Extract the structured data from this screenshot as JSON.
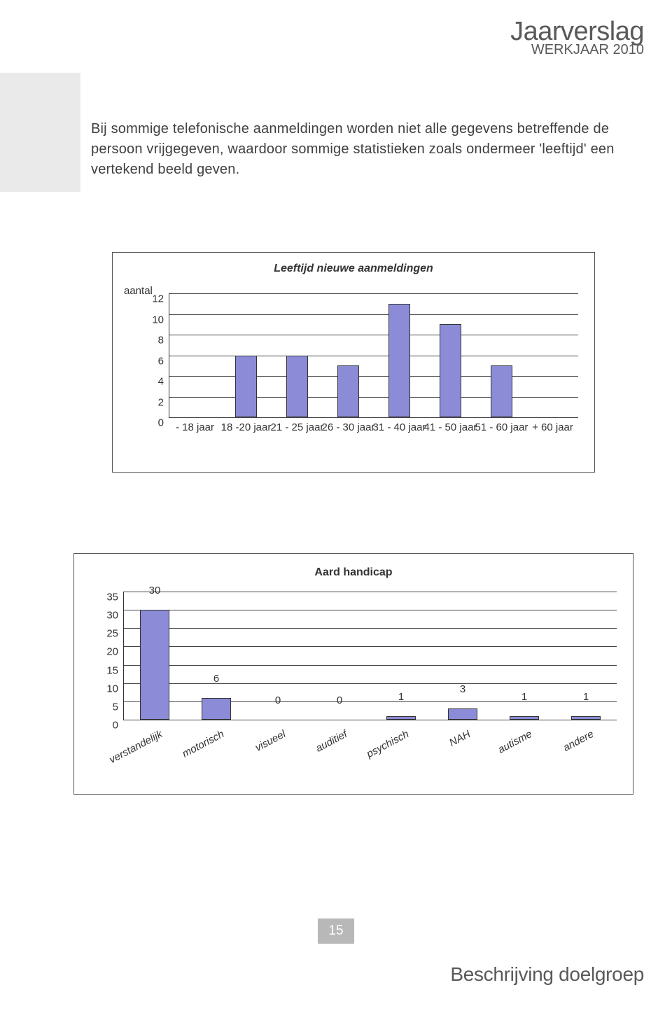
{
  "header": {
    "title": "Jaarverslag",
    "subtitle": "WERKJAAR 2010"
  },
  "body_paragraph": "Bij sommige telefonische aanmeldingen worden niet alle gegevens betreffende de persoon vrijgegeven, waardoor sommige statistieken zoals ondermeer 'leeftijd' een vertekend beeld geven.",
  "chart1": {
    "type": "bar",
    "title": "Leeftijd nieuwe aanmeldingen",
    "title_fontsize": 17,
    "y_axis_label": "aantal",
    "categories": [
      "- 18 jaar",
      "18 -20 jaar",
      "21 - 25 jaar",
      "26 - 30 jaar",
      "31 - 40 jaar",
      "41 - 50 jaar",
      "51 - 60 jaar",
      "+ 60 jaar"
    ],
    "values": [
      0,
      6,
      6,
      5,
      11,
      9,
      5,
      0
    ],
    "bar_color": "#8b8bd8",
    "bar_border_color": "#333333",
    "background_color": "#ffffff",
    "grid_color": "#444444",
    "ylim": [
      0,
      12
    ],
    "ytick_step": 2,
    "bar_width": 0.42,
    "tick_fontsize": 15
  },
  "chart2": {
    "type": "bar",
    "title": "Aard handicap",
    "title_fontsize": 17,
    "categories": [
      "verstandelijk",
      "motorisch",
      "visueel",
      "auditief",
      "psychisch",
      "NAH",
      "autisme",
      "andere"
    ],
    "values": [
      30,
      6,
      0,
      0,
      1,
      3,
      1,
      1
    ],
    "bar_color": "#8b8bd8",
    "bar_border_color": "#333333",
    "background_color": "#ffffff",
    "grid_color": "#444444",
    "ylim": [
      0,
      35
    ],
    "ytick_step": 5,
    "bar_width": 0.48,
    "tick_fontsize": 15,
    "show_value_labels": true
  },
  "page_number": "15",
  "footer_section": "Beschrijving doelgroep"
}
